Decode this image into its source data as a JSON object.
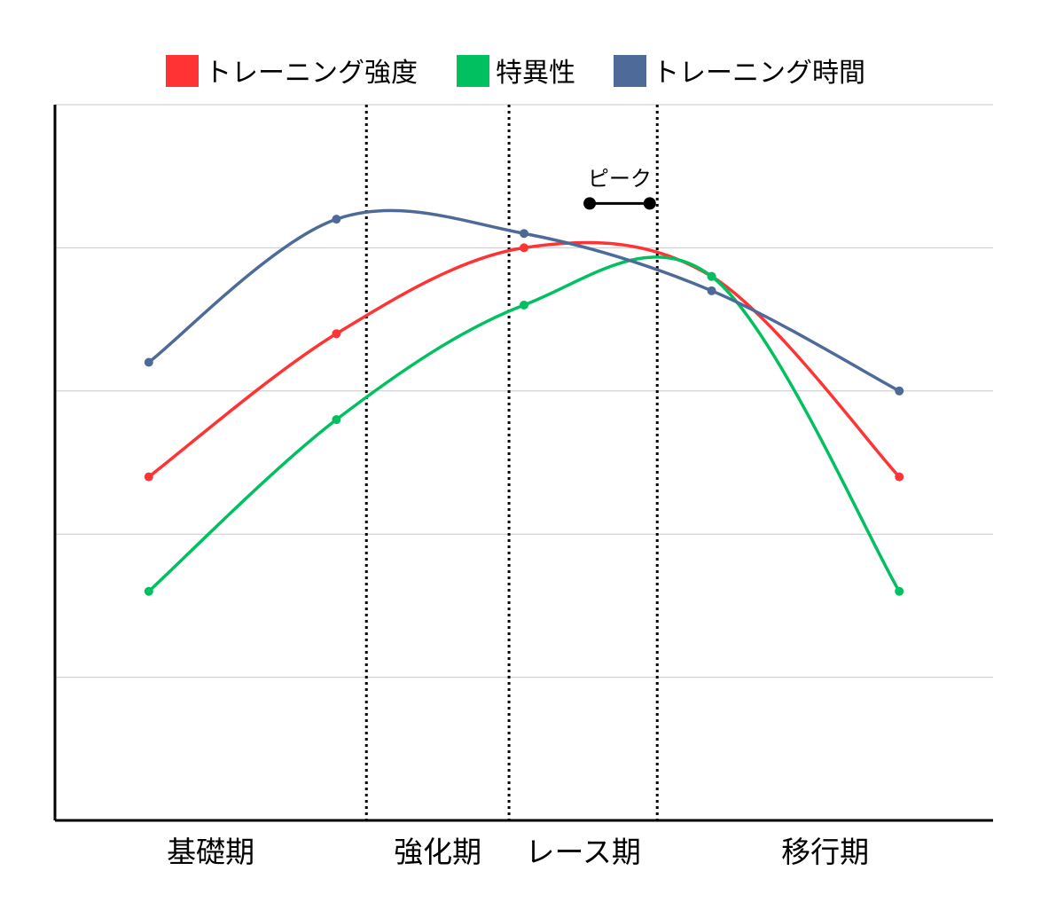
{
  "chart_data": {
    "type": "line",
    "title": "",
    "xlabel": "",
    "ylabel": "",
    "x": [
      1,
      2,
      3,
      4,
      5
    ],
    "xlim": [
      0.5,
      5.5
    ],
    "ylim": [
      0,
      5
    ],
    "grid": true,
    "legend_position": "top",
    "smooth": true,
    "series": [
      {
        "name": "トレーニング強度",
        "color": "#ff3333",
        "values": [
          2.4,
          3.4,
          4.0,
          3.8,
          2.4
        ]
      },
      {
        "name": "特異性",
        "color": "#00c060",
        "values": [
          1.6,
          2.8,
          3.6,
          3.8,
          1.6
        ]
      },
      {
        "name": "トレーニング時間",
        "color": "#4e6a99",
        "values": [
          3.2,
          4.2,
          4.1,
          3.7,
          3.0
        ]
      }
    ],
    "phases": [
      {
        "label": "基礎期",
        "start": 0.5,
        "end": 2.16
      },
      {
        "label": "強化期",
        "start": 2.16,
        "end": 2.92
      },
      {
        "label": "レース期",
        "start": 2.92,
        "end": 3.71
      },
      {
        "label": "移行期",
        "start": 3.71,
        "end": 5.5
      }
    ],
    "dividers": [
      2.16,
      2.92,
      3.71
    ],
    "annotations": [
      {
        "label": "ピーク",
        "x_start": 3.35,
        "x_end": 3.67,
        "y": 4.31
      }
    ]
  }
}
